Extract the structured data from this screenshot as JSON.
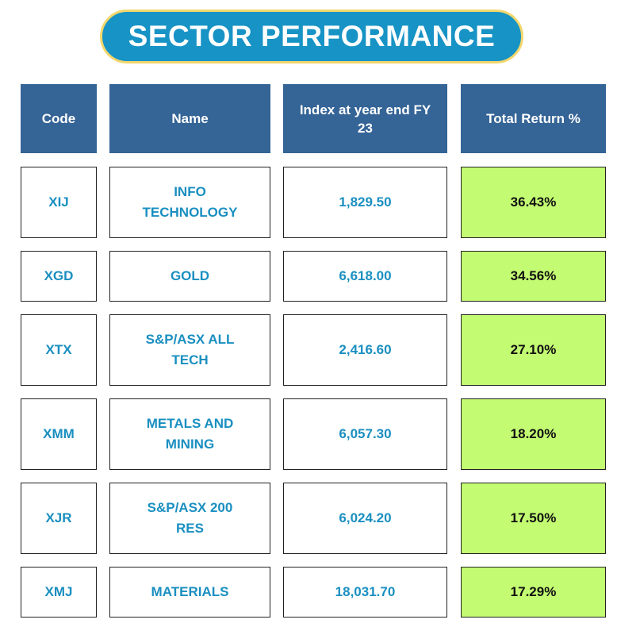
{
  "title": "SECTOR PERFORMANCE",
  "headers": {
    "code": "Code",
    "name": "Name",
    "index": "Index at year end FY 23",
    "total_return": "Total Return %"
  },
  "rows": [
    {
      "code": "XIJ",
      "name": "INFO TECHNOLOGY",
      "index": "1,829.50",
      "total_return": "36.43%"
    },
    {
      "code": "XGD",
      "name": "GOLD",
      "index": "6,618.00",
      "total_return": "34.56%"
    },
    {
      "code": "XTX",
      "name": "S&P/ASX ALL TECH",
      "index": "2,416.60",
      "total_return": "27.10%"
    },
    {
      "code": "XMM",
      "name": "METALS AND MINING",
      "index": "6,057.30",
      "total_return": "18.20%"
    },
    {
      "code": "XJR",
      "name": "S&P/ASX 200 RES",
      "index": "6,024.20",
      "total_return": "17.50%"
    },
    {
      "code": "XMJ",
      "name": "MATERIALS",
      "index": "18,031.70",
      "total_return": "17.29%"
    }
  ],
  "colors": {
    "title_bg": "#1793c5",
    "title_border": "#f3d76d",
    "header_bg": "#356496",
    "body_text": "#1a8fc0",
    "return_bg": "#c3fb72"
  }
}
